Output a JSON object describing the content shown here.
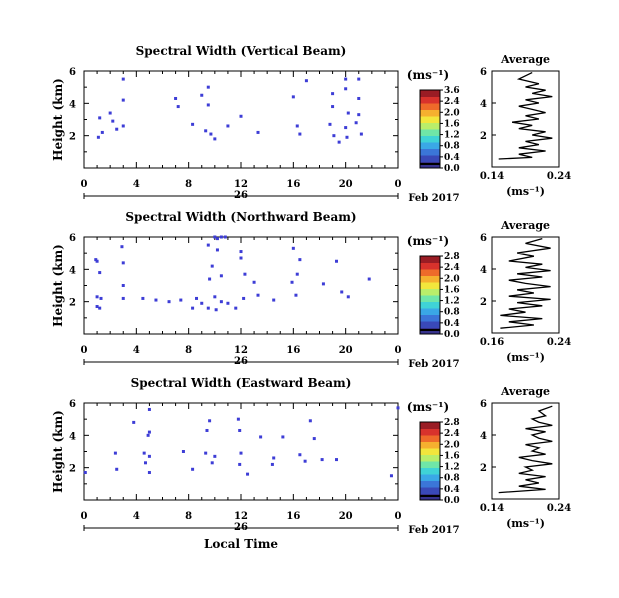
{
  "panels": [
    {
      "title": "Spectral Width (Vertical Beam)",
      "avg_xticks": [
        "0.14",
        "0.24"
      ]
    },
    {
      "title": "Spectral Width (Northward Beam)",
      "avg_xticks": [
        "0.16",
        "0.24"
      ]
    },
    {
      "title": "Spectral Width (Eastward Beam)",
      "avg_xticks": [
        "0.14",
        "0.24"
      ]
    }
  ],
  "labels": {
    "ylabel": "Height (km)",
    "xlabel": "Local Time",
    "date": "Feb 2017",
    "day": "26",
    "unit": "(ms⁻¹)",
    "average_title": "Average",
    "average_xlabel": "(ms⁻¹)"
  },
  "colors": {
    "points": "#3d3dd6",
    "colorbar": [
      "#36328c",
      "#3949b8",
      "#3b76d8",
      "#3aa8e6",
      "#3fd3d6",
      "#6fe6a8",
      "#b9ee6a",
      "#f2e63c",
      "#f5b02f",
      "#ee6a2a",
      "#d8322c",
      "#9a1c24"
    ]
  },
  "chart_data": [
    {
      "type": "scatter",
      "title": "Spectral Width (Vertical Beam)",
      "xlabel": "",
      "ylabel": "Height (km)",
      "xlim": [
        0,
        24
      ],
      "ylim": [
        0,
        6
      ],
      "xticks": [
        "0",
        "4",
        "8",
        "12",
        "16",
        "20",
        "0"
      ],
      "yticks": [
        "2",
        "4",
        "6"
      ],
      "points": [
        [
          3,
          5.5
        ],
        [
          17,
          5.4
        ],
        [
          20,
          5.5
        ],
        [
          21,
          5.5
        ],
        [
          3,
          4.2
        ],
        [
          7,
          4.3
        ],
        [
          9,
          4.5
        ],
        [
          9.5,
          5
        ],
        [
          16,
          4.4
        ],
        [
          19,
          4.6
        ],
        [
          20,
          4.9
        ],
        [
          21,
          4.3
        ],
        [
          2,
          3.4
        ],
        [
          7.2,
          3.8
        ],
        [
          9.5,
          3.9
        ],
        [
          12,
          3.2
        ],
        [
          19,
          3.8
        ],
        [
          20.2,
          3.4
        ],
        [
          21,
          3.3
        ],
        [
          1.2,
          3.1
        ],
        [
          2.2,
          2.9
        ],
        [
          3,
          2.6
        ],
        [
          8.3,
          2.7
        ],
        [
          11,
          2.6
        ],
        [
          16.3,
          2.6
        ],
        [
          18.8,
          2.7
        ],
        [
          20,
          2.5
        ],
        [
          20.8,
          2.8
        ],
        [
          1.4,
          2.2
        ],
        [
          2.5,
          2.4
        ],
        [
          9.3,
          2.3
        ],
        [
          9.7,
          2.1
        ],
        [
          13.3,
          2.2
        ],
        [
          16.5,
          2.1
        ],
        [
          19.1,
          2.0
        ],
        [
          20.1,
          1.9
        ],
        [
          21.2,
          2.1
        ],
        [
          1.1,
          1.9
        ],
        [
          10,
          1.8
        ],
        [
          19.5,
          1.6
        ]
      ],
      "colorbar": {
        "label": "(ms⁻¹)",
        "ticks": [
          "3.6",
          "2.4",
          "2.0",
          "1.6",
          "1.2",
          "0.8",
          "0.4",
          "0.0"
        ]
      }
    },
    {
      "type": "scatter",
      "title": "Spectral Width (Northward Beam)",
      "xlabel": "",
      "ylabel": "Height (km)",
      "xlim": [
        0,
        24
      ],
      "ylim": [
        0,
        6
      ],
      "xticks": [
        "0",
        "4",
        "8",
        "12",
        "16",
        "20",
        "0"
      ],
      "yticks": [
        "2",
        "4",
        "6"
      ],
      "points": [
        [
          10,
          6
        ],
        [
          10.2,
          5.9
        ],
        [
          10.5,
          6
        ],
        [
          10.8,
          6
        ],
        [
          2.9,
          5.4
        ],
        [
          9.5,
          5.5
        ],
        [
          10.2,
          5.2
        ],
        [
          12,
          5.1
        ],
        [
          16,
          5.3
        ],
        [
          0.9,
          4.6
        ],
        [
          1,
          4.5
        ],
        [
          3,
          4.4
        ],
        [
          9.8,
          4.2
        ],
        [
          12,
          4.7
        ],
        [
          16.5,
          4.6
        ],
        [
          19.3,
          4.5
        ],
        [
          12.3,
          3.7
        ],
        [
          16.3,
          3.7
        ],
        [
          9.6,
          3.4
        ],
        [
          10.5,
          3.6
        ],
        [
          13,
          3.2
        ],
        [
          15.9,
          3.2
        ],
        [
          18.3,
          3.1
        ],
        [
          3,
          3.0
        ],
        [
          1.2,
          3.8
        ],
        [
          21.8,
          3.4
        ],
        [
          1,
          2.3
        ],
        [
          1.3,
          2.2
        ],
        [
          3,
          2.2
        ],
        [
          4.5,
          2.2
        ],
        [
          5.5,
          2.1
        ],
        [
          6.5,
          2.0
        ],
        [
          7.4,
          2.1
        ],
        [
          8.6,
          2.2
        ],
        [
          9,
          1.9
        ],
        [
          10,
          2.3
        ],
        [
          10.5,
          2.0
        ],
        [
          11,
          1.9
        ],
        [
          12.2,
          2.2
        ],
        [
          13.3,
          2.4
        ],
        [
          14.5,
          2.1
        ],
        [
          16.2,
          2.4
        ],
        [
          19.7,
          2.6
        ],
        [
          20.2,
          2.3
        ],
        [
          1,
          1.7
        ],
        [
          1.2,
          1.6
        ],
        [
          8.3,
          1.6
        ],
        [
          9.5,
          1.6
        ],
        [
          10.1,
          1.5
        ],
        [
          11.6,
          1.6
        ]
      ],
      "colorbar": {
        "label": "(ms⁻¹)",
        "ticks": [
          "2.8",
          "2.4",
          "2.0",
          "1.6",
          "1.2",
          "0.8",
          "0.4",
          "0.0"
        ]
      }
    },
    {
      "type": "scatter",
      "title": "Spectral Width (Eastward Beam)",
      "xlabel": "Local Time",
      "ylabel": "Height (km)",
      "xlim": [
        0,
        24
      ],
      "ylim": [
        0,
        6
      ],
      "xticks": [
        "0",
        "4",
        "8",
        "12",
        "16",
        "20",
        "0"
      ],
      "yticks": [
        "2",
        "4",
        "6"
      ],
      "points": [
        [
          5,
          5.6
        ],
        [
          24,
          5.7
        ],
        [
          3.8,
          4.8
        ],
        [
          9.6,
          4.9
        ],
        [
          11.8,
          5.0
        ],
        [
          17.3,
          4.9
        ],
        [
          5,
          4.2
        ],
        [
          4.9,
          4.0
        ],
        [
          9.4,
          4.3
        ],
        [
          11.9,
          4.3
        ],
        [
          13.5,
          3.9
        ],
        [
          15.2,
          3.9
        ],
        [
          17.6,
          3.8
        ],
        [
          2.4,
          2.9
        ],
        [
          4.6,
          2.9
        ],
        [
          5,
          2.7
        ],
        [
          7.6,
          3.0
        ],
        [
          9.3,
          2.9
        ],
        [
          10,
          2.7
        ],
        [
          12,
          2.9
        ],
        [
          14.5,
          2.6
        ],
        [
          16.5,
          2.8
        ],
        [
          18.2,
          2.5
        ],
        [
          19.3,
          2.5
        ],
        [
          4.7,
          2.3
        ],
        [
          9.8,
          2.3
        ],
        [
          11.9,
          2.2
        ],
        [
          14.4,
          2.2
        ],
        [
          16.9,
          2.4
        ],
        [
          2.5,
          1.9
        ],
        [
          5,
          1.7
        ],
        [
          8.3,
          1.9
        ],
        [
          12.5,
          1.6
        ],
        [
          23.5,
          1.5
        ],
        [
          0.1,
          1.7
        ]
      ],
      "colorbar": {
        "label": "(ms⁻¹)",
        "ticks": [
          "2.8",
          "2.4",
          "2.0",
          "1.6",
          "1.2",
          "0.8",
          "0.4",
          "0.0"
        ]
      }
    },
    {
      "type": "line",
      "title": "Average",
      "xlabel": "(ms⁻¹)",
      "xlim": [
        0.14,
        0.24
      ],
      "ylim": [
        0,
        6
      ],
      "xticks": [
        "0.14",
        "0.24"
      ],
      "yticks": [
        "2",
        "4",
        "6"
      ],
      "x": [
        0.15,
        0.2,
        0.18,
        0.22,
        0.18,
        0.21,
        0.19,
        0.23,
        0.2,
        0.22,
        0.18,
        0.2,
        0.17,
        0.21,
        0.19,
        0.22,
        0.2,
        0.18,
        0.21,
        0.19,
        0.23,
        0.2,
        0.22,
        0.19,
        0.21,
        0.18,
        0.2
      ],
      "y": [
        0.5,
        0.6,
        0.8,
        1.0,
        1.2,
        1.4,
        1.6,
        1.8,
        2.0,
        2.2,
        2.4,
        2.6,
        2.8,
        3.0,
        3.2,
        3.4,
        3.6,
        3.8,
        4.0,
        4.2,
        4.4,
        4.6,
        4.8,
        5.0,
        5.2,
        5.5,
        5.9
      ]
    },
    {
      "type": "line",
      "title": "Average",
      "xlabel": "(ms⁻¹)",
      "xlim": [
        0.16,
        0.24
      ],
      "ylim": [
        0,
        6
      ],
      "xticks": [
        "0.16",
        "0.24"
      ],
      "yticks": [
        "2",
        "4",
        "6"
      ],
      "x": [
        0.17,
        0.21,
        0.18,
        0.22,
        0.17,
        0.2,
        0.18,
        0.22,
        0.19,
        0.23,
        0.18,
        0.21,
        0.19,
        0.23,
        0.2,
        0.18,
        0.22,
        0.19,
        0.23,
        0.2,
        0.22,
        0.18,
        0.21,
        0.19,
        0.23,
        0.2,
        0.22
      ],
      "y": [
        0.3,
        0.5,
        0.7,
        0.9,
        1.1,
        1.3,
        1.5,
        1.7,
        1.9,
        2.1,
        2.3,
        2.5,
        2.7,
        2.9,
        3.1,
        3.3,
        3.5,
        3.7,
        3.9,
        4.1,
        4.3,
        4.5,
        4.8,
        5.0,
        5.3,
        5.6,
        5.9
      ]
    },
    {
      "type": "line",
      "title": "Average",
      "xlabel": "(ms⁻¹)",
      "xlim": [
        0.14,
        0.24
      ],
      "ylim": [
        0,
        6
      ],
      "xticks": [
        "0.14",
        "0.24"
      ],
      "yticks": [
        "2",
        "4",
        "6"
      ],
      "x": [
        0.15,
        0.22,
        0.18,
        0.21,
        0.19,
        0.22,
        0.18,
        0.2,
        0.19,
        0.23,
        0.2,
        0.18,
        0.22,
        0.2,
        0.21,
        0.19,
        0.23,
        0.21,
        0.2,
        0.22,
        0.19,
        0.23,
        0.21,
        0.2,
        0.22,
        0.21,
        0.23
      ],
      "y": [
        0.4,
        0.6,
        0.8,
        1.0,
        1.2,
        1.4,
        1.6,
        1.8,
        2.0,
        2.2,
        2.4,
        2.6,
        2.8,
        3.0,
        3.2,
        3.4,
        3.6,
        3.8,
        4.0,
        4.2,
        4.4,
        4.6,
        4.8,
        5.0,
        5.2,
        5.5,
        5.8
      ]
    }
  ]
}
